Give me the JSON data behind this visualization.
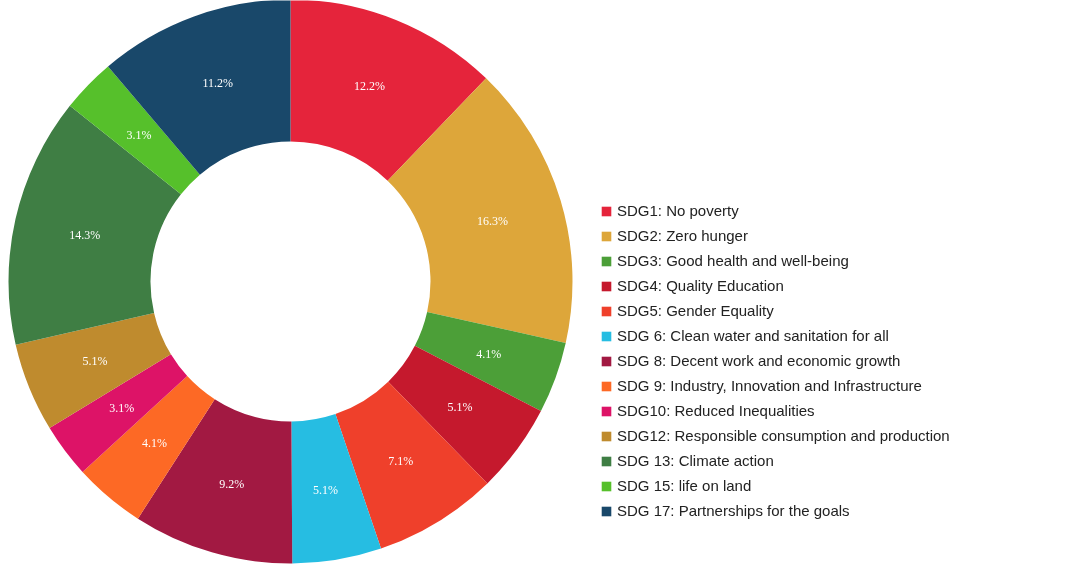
{
  "chart_data": {
    "type": "donut",
    "categories": [
      "SDG1: No poverty",
      "SDG2: Zero hunger",
      "SDG3: Good health and well-being",
      "SDG4: Quality Education",
      "SDG5: Gender Equality",
      "SDG 6: Clean water and sanitation for all",
      "SDG 8: Decent work and economic growth",
      "SDG 9: Industry, Innovation and Infrastructure",
      "SDG10: Reduced Inequalities",
      "SDG12: Responsible consumption and production",
      "SDG 13: Climate action",
      "SDG 15: life on land",
      "SDG 17: Partnerships for the goals"
    ],
    "values": [
      12.2,
      16.3,
      4.1,
      5.1,
      7.1,
      5.1,
      9.2,
      4.1,
      3.1,
      5.1,
      14.3,
      3.1,
      11.2
    ],
    "value_labels": [
      "12.2%",
      "16.3%",
      "4.1%",
      "5.1%",
      "7.1%",
      "5.1%",
      "9.2%",
      "4.1%",
      "3.1%",
      "5.1%",
      "14.3%",
      "3.1%",
      "11.2%"
    ],
    "colors": [
      "#e5243b",
      "#dda63a",
      "#4c9f38",
      "#c5192d",
      "#ef402b",
      "#26bde2",
      "#a21942",
      "#fd6925",
      "#dd1367",
      "#bf8b2e",
      "#3f7e44",
      "#56c02b",
      "#19486a"
    ],
    "legend": "right"
  }
}
